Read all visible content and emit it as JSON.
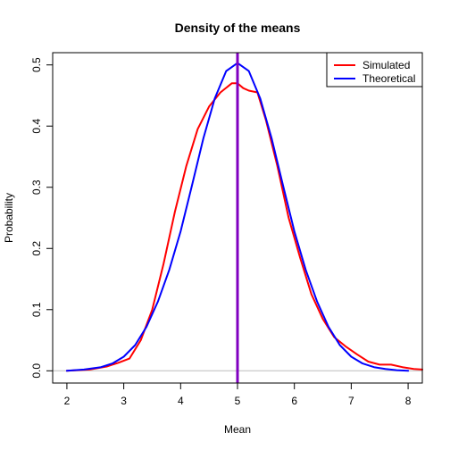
{
  "chart_data": {
    "type": "line",
    "title": "Density of the means",
    "xlabel": "Mean",
    "ylabel": "Probability",
    "xlim": [
      1.75,
      8.25
    ],
    "ylim": [
      -0.02,
      0.52
    ],
    "x_ticks": [
      2,
      3,
      4,
      5,
      6,
      7,
      8
    ],
    "y_ticks": [
      0.0,
      0.1,
      0.2,
      0.3,
      0.4,
      0.5
    ],
    "x_tick_labels": [
      "2",
      "3",
      "4",
      "5",
      "6",
      "7",
      "8"
    ],
    "y_tick_labels": [
      "0.0",
      "0.1",
      "0.2",
      "0.3",
      "0.4",
      "0.5"
    ],
    "legend_position": "top-right",
    "baseline": {
      "y": 0,
      "color": "#bebebe"
    },
    "vertical_line": {
      "x": 5,
      "color": "#8000c0"
    },
    "series": [
      {
        "name": "Simulated",
        "color": "#ff0000",
        "x": [
          2.0,
          2.4,
          2.7,
          2.9,
          3.1,
          3.3,
          3.5,
          3.7,
          3.9,
          4.1,
          4.3,
          4.5,
          4.7,
          4.9,
          5.0,
          5.1,
          5.2,
          5.35,
          5.5,
          5.7,
          5.9,
          6.1,
          6.3,
          6.5,
          6.7,
          6.9,
          7.1,
          7.3,
          7.5,
          7.7,
          7.9,
          8.1,
          8.25
        ],
        "y": [
          0.0,
          0.002,
          0.007,
          0.013,
          0.02,
          0.05,
          0.1,
          0.175,
          0.26,
          0.335,
          0.395,
          0.432,
          0.455,
          0.47,
          0.47,
          0.462,
          0.458,
          0.455,
          0.41,
          0.335,
          0.25,
          0.185,
          0.125,
          0.085,
          0.055,
          0.04,
          0.027,
          0.015,
          0.01,
          0.01,
          0.006,
          0.003,
          0.002
        ]
      },
      {
        "name": "Theoretical",
        "color": "#0000ff",
        "x": [
          2.0,
          2.3,
          2.6,
          2.8,
          3.0,
          3.2,
          3.4,
          3.6,
          3.8,
          4.0,
          4.2,
          4.4,
          4.6,
          4.8,
          5.0,
          5.2,
          5.4,
          5.6,
          5.8,
          6.0,
          6.2,
          6.4,
          6.6,
          6.8,
          7.0,
          7.2,
          7.4,
          7.6,
          7.8,
          8.0
        ],
        "y": [
          0.0,
          0.002,
          0.006,
          0.012,
          0.023,
          0.042,
          0.072,
          0.113,
          0.165,
          0.228,
          0.303,
          0.38,
          0.445,
          0.49,
          0.503,
          0.49,
          0.445,
          0.38,
          0.303,
          0.228,
          0.165,
          0.113,
          0.072,
          0.042,
          0.023,
          0.012,
          0.006,
          0.003,
          0.001,
          0.0
        ]
      }
    ]
  }
}
